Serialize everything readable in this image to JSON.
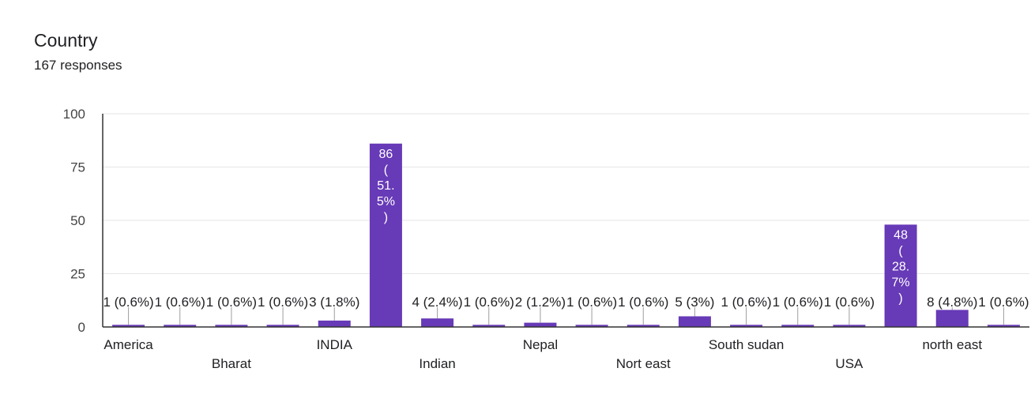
{
  "title": "Country",
  "subtitle": "167 responses",
  "colors": {
    "bar": "#673ab7",
    "grid": "#e6e6e6",
    "axis": "#333333",
    "leader": "#9e9e9e"
  },
  "chart_data": {
    "type": "bar",
    "ylim": [
      0,
      100
    ],
    "yticks": [
      0,
      25,
      50,
      75,
      100
    ],
    "grid": true,
    "categories": [
      "America",
      "",
      "Bharat",
      "",
      "INDIA",
      "",
      "Indian",
      "",
      "Nepal",
      "",
      "Nort east",
      "",
      "South sudan",
      "",
      "USA",
      "",
      "north east",
      ""
    ],
    "values": [
      1,
      1,
      1,
      1,
      3,
      86,
      4,
      1,
      2,
      1,
      1,
      5,
      1,
      1,
      1,
      48,
      8,
      1
    ],
    "labels": [
      "1 (0.6%)",
      "1 (0.6%)",
      "1 (0.6%)",
      "1 (0.6%)",
      "3 (1.8%)",
      "86 (51.5%)",
      "4 (2.4%)",
      "1 (0.6%)",
      "2 (1.2%)",
      "1 (0.6%)",
      "1 (0.6%)",
      "5 (3%)",
      "1 (0.6%)",
      "1 (0.6%)",
      "1 (0.6%)",
      "48 (28.7%)",
      "8 (4.8%)",
      "1 (0.6%)"
    ],
    "inside_labels": {
      "5": [
        "86",
        "(",
        "51.",
        "5%",
        ")"
      ],
      "15": [
        "48",
        "(",
        "28.",
        "7%",
        ")"
      ]
    }
  }
}
